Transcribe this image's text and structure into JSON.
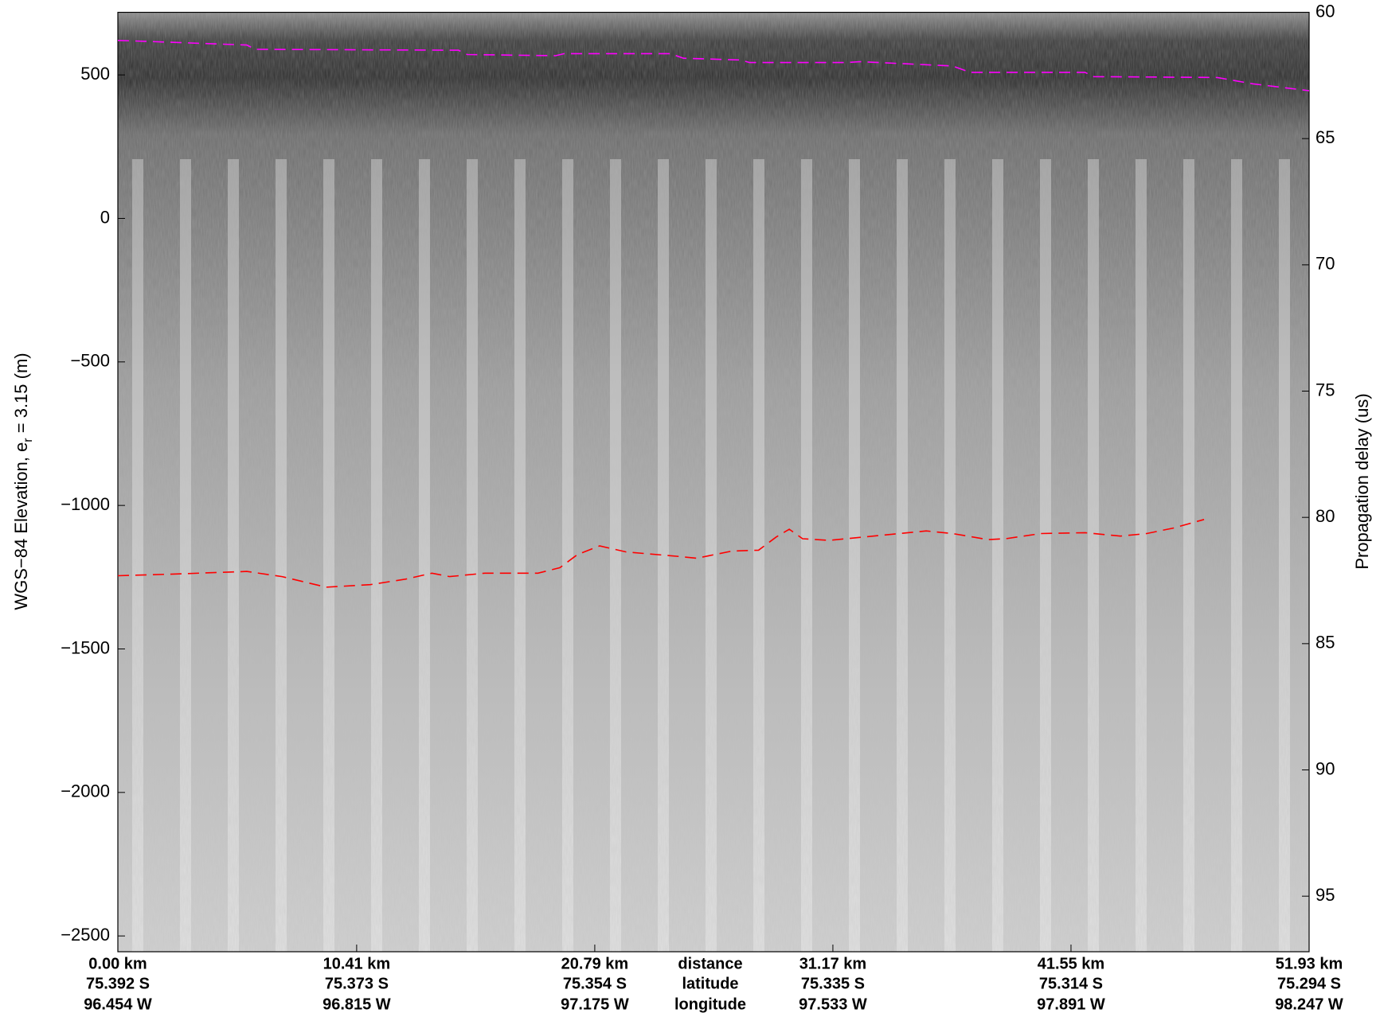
{
  "chart_data": {
    "type": "line",
    "ylabel": [
      "WGS−84 Elevation, e",
      "r",
      " = 3.15 (m)"
    ],
    "y2label": "Propagation delay (us)",
    "xlim": [
      0,
      51.93
    ],
    "ylim": [
      -2555,
      718
    ],
    "yticks": [
      500,
      0,
      {
        "value": -500,
        "label": "−500"
      },
      {
        "value": -1000,
        "label": "−1000"
      },
      {
        "value": -1500,
        "label": "−1500"
      },
      {
        "value": -2000,
        "label": "−2000"
      },
      {
        "value": -2500,
        "label": "−2500"
      }
    ],
    "y2lim": [
      60,
      97.2
    ],
    "y2ticks": [
      60,
      65,
      70,
      75,
      80,
      85,
      90,
      95
    ],
    "xticks": [
      {
        "value": 0,
        "label": "0.00 km"
      },
      {
        "value": 10.41,
        "label": "10.41 km"
      },
      {
        "value": 20.79,
        "label": "20.79 km"
      },
      {
        "value": 31.17,
        "label": "31.17 km"
      },
      {
        "value": 41.55,
        "label": "41.55 km"
      },
      {
        "value": 51.93,
        "label": "51.93 km"
      }
    ],
    "xtick_latitudes": [
      "75.392 S",
      "75.373 S",
      "75.354 S",
      "75.335 S",
      "75.314 S",
      "75.294 S"
    ],
    "xtick_longitudes": [
      "96.454 W",
      "96.815 W",
      "97.175 W",
      "97.533 W",
      "97.891 W",
      "98.247 W"
    ],
    "row_labels": [
      "distance",
      "latitude",
      "longitude"
    ],
    "series": [
      {
        "color": "#ff00ff",
        "x": [
          0,
          1.19,
          5.62,
          6.0,
          14.85,
          15.23,
          19.08,
          19.46,
          24.08,
          24.66,
          27.16,
          27.54,
          31.77,
          32.35,
          36.39,
          37.16,
          42.16,
          42.54,
          47.93,
          49.47,
          51.93
        ],
        "values": [
          620,
          617,
          604,
          589,
          586,
          571,
          567,
          574,
          574,
          558,
          552,
          543,
          543,
          546,
          531,
          509,
          509,
          494,
          491,
          469,
          445
        ]
      },
      {
        "color": "#ff0000",
        "x": [
          0,
          2.54,
          5.62,
          7.16,
          9.08,
          11.0,
          12.54,
          13.69,
          14.46,
          16.0,
          18.31,
          19.27,
          20.04,
          21.0,
          22.16,
          24.47,
          25.23,
          26.77,
          27.93,
          28.7,
          29.27,
          29.85,
          31.0,
          32.93,
          34.08,
          35.24,
          36.39,
          37.93,
          38.7,
          40.24,
          42.16,
          43.7,
          44.85,
          46.01,
          47.35
        ],
        "values": [
          -1245,
          -1239,
          -1230,
          -1248,
          -1285,
          -1276,
          -1257,
          -1236,
          -1248,
          -1236,
          -1236,
          -1217,
          -1171,
          -1141,
          -1162,
          -1178,
          -1184,
          -1159,
          -1156,
          -1110,
          -1083,
          -1116,
          -1122,
          -1107,
          -1098,
          -1089,
          -1098,
          -1119,
          -1116,
          -1098,
          -1095,
          -1107,
          -1098,
          -1079,
          -1049
        ]
      }
    ]
  }
}
